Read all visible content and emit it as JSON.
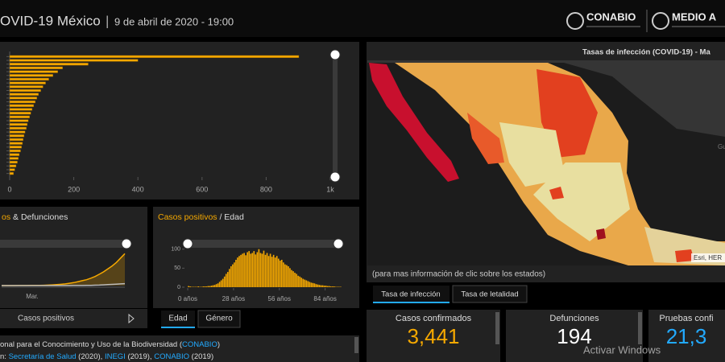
{
  "header": {
    "title": "OVID-19 México",
    "separator": "|",
    "date": "9 de abril de 2020 - 19:00",
    "logo_left": "CONABIO",
    "logo_right": "MEDIO A"
  },
  "chart_data": [
    {
      "type": "bar",
      "orientation": "horizontal",
      "color": "#f5a800",
      "values": [
        902,
        400,
        245,
        165,
        150,
        135,
        122,
        112,
        104,
        97,
        90,
        85,
        80,
        75,
        70,
        66,
        62,
        58,
        55,
        52,
        48,
        45,
        42,
        40,
        37,
        34,
        30,
        27,
        24,
        20,
        16,
        12
      ],
      "xlim": [
        0,
        1000
      ],
      "xticks": [
        0,
        200,
        400,
        600,
        800,
        {
          "value": 1000,
          "label": "1k"
        }
      ]
    },
    {
      "type": "area",
      "title": [
        "os",
        "&",
        "Defunciones"
      ],
      "x_label": "Mar.",
      "ylim": [
        0,
        900
      ],
      "series": [
        {
          "name": "Casos positivos",
          "color": "#f5a800",
          "values": [
            0,
            0,
            0,
            0,
            1,
            1,
            2,
            3,
            4,
            5,
            7,
            10,
            14,
            20,
            26,
            35,
            48,
            60,
            80,
            100,
            120,
            150,
            185,
            230,
            280,
            340,
            400,
            470,
            560,
            650
          ]
        },
        {
          "color": "#bbbbbb",
          "values": [
            0,
            0,
            0,
            0,
            0,
            0,
            0,
            0,
            0,
            0,
            0,
            0,
            0,
            0,
            0,
            0,
            0,
            1,
            1,
            2,
            3,
            5,
            8,
            10,
            14,
            20,
            25,
            30,
            35,
            40
          ]
        }
      ]
    },
    {
      "type": "histogram",
      "title": [
        "Casos positivos",
        "/ Edad"
      ],
      "color": "#f5a800",
      "bins": [
        0,
        1,
        2,
        3,
        4,
        5,
        6,
        7,
        8,
        9,
        10,
        11,
        12,
        13,
        14,
        15,
        16,
        17,
        18,
        19,
        20,
        21,
        22,
        23,
        24,
        25,
        26,
        27,
        28,
        29,
        30,
        31,
        32,
        33,
        34,
        35,
        36,
        37,
        38,
        39,
        40,
        41,
        42,
        43,
        44,
        45,
        46,
        47,
        48,
        49,
        50,
        51,
        52,
        53,
        54,
        55,
        56,
        57,
        58,
        59,
        60,
        61,
        62,
        63,
        64,
        65,
        66,
        67,
        68,
        69,
        70,
        71,
        72,
        73,
        74,
        75,
        76,
        77,
        78,
        79,
        80,
        81,
        82,
        83,
        84,
        85,
        86,
        87,
        88,
        89,
        90,
        91,
        92,
        93,
        94,
        95,
        96
      ],
      "values": [
        3,
        2,
        1,
        1,
        1,
        1,
        2,
        1,
        1,
        2,
        2,
        2,
        3,
        3,
        4,
        5,
        6,
        8,
        10,
        14,
        18,
        22,
        28,
        35,
        40,
        48,
        55,
        60,
        65,
        72,
        78,
        82,
        85,
        88,
        90,
        84,
        92,
        95,
        88,
        90,
        95,
        86,
        92,
        100,
        90,
        88,
        96,
        85,
        90,
        82,
        88,
        80,
        85,
        78,
        82,
        75,
        70,
        72,
        65,
        60,
        58,
        55,
        50,
        45,
        42,
        38,
        35,
        30,
        28,
        25,
        22,
        20,
        18,
        16,
        14,
        12,
        11,
        10,
        8,
        7,
        6,
        5,
        5,
        4,
        4,
        3,
        3,
        2,
        2,
        2,
        1,
        1,
        1,
        1,
        0,
        0
      ],
      "xlim": [
        -1,
        96
      ],
      "xticks": [
        {
          "value": 0,
          "label": "0 años"
        },
        {
          "value": 28,
          "label": "28 años"
        },
        {
          "value": 56,
          "label": "56 años"
        },
        {
          "value": 84,
          "label": "84 años"
        }
      ],
      "ylim": [
        0,
        110
      ],
      "yticks": [
        0,
        50,
        100
      ]
    }
  ],
  "left_tabs": {
    "legend_note": "Casos positivos",
    "tabs": [
      "Edad",
      "Género"
    ]
  },
  "credits": {
    "line1_text": "onal para el Conocimiento y Uso de la Biodiversidad (",
    "line1_link": "CONABIO",
    "line1_end": ")",
    "line2_text": "n: ",
    "line2_link1": "Secretaría de Salud",
    "line2_mid1": " (2020), ",
    "line2_link2": "INEGI",
    "line2_mid2": " (2019), ",
    "line2_link3": "CONABIO",
    "line2_end": " (2019)"
  },
  "map": {
    "title": "Tasas de infección (COVID-19) - Ma",
    "note": "(para mas información de clic sobre los estados)",
    "attribution": "Esri, HER",
    "gulf_label": "Gu",
    "tabs": [
      "Tasa de infección",
      "Tasa de letalidad"
    ]
  },
  "stats": [
    {
      "label": "Casos confirmados",
      "value": "3,441",
      "color": "#f5a800"
    },
    {
      "label": "Defunciones",
      "value": "194",
      "color": "#ffffff"
    },
    {
      "label": "Pruebas confi",
      "value": "21,3",
      "color": "#22aaff"
    }
  ],
  "watermark": "Activar Windows"
}
